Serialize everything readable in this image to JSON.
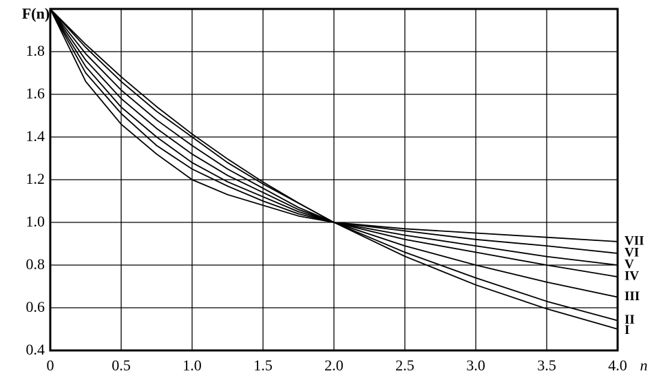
{
  "chart_data": {
    "type": "line",
    "x_label": "n",
    "y_label": "F(n)",
    "x": [
      0,
      0.25,
      0.5,
      0.75,
      1,
      1.25,
      1.5,
      1.75,
      2,
      2.5,
      3,
      3.5,
      4
    ],
    "series": [
      {
        "name": "I",
        "color": "#000000",
        "values": [
          2,
          1.834,
          1.682,
          1.542,
          1.414,
          1.297,
          1.189,
          1.091,
          1.0,
          0.841,
          0.707,
          0.595,
          0.5
        ]
      },
      {
        "name": "II",
        "color": "#000000",
        "values": [
          2,
          1.82,
          1.66,
          1.52,
          1.4,
          1.28,
          1.18,
          1.09,
          1.0,
          0.86,
          0.74,
          0.63,
          0.54
        ]
      },
      {
        "name": "III",
        "color": "#000000",
        "values": [
          2,
          1.79,
          1.62,
          1.48,
          1.36,
          1.25,
          1.16,
          1.07,
          1.0,
          0.89,
          0.8,
          0.72,
          0.65
        ]
      },
      {
        "name": "IV",
        "color": "#000000",
        "values": [
          2,
          1.76,
          1.58,
          1.44,
          1.32,
          1.22,
          1.14,
          1.06,
          1.0,
          0.92,
          0.86,
          0.8,
          0.745
        ]
      },
      {
        "name": "V",
        "color": "#000000",
        "values": [
          2,
          1.73,
          1.54,
          1.4,
          1.28,
          1.19,
          1.12,
          1.05,
          1.0,
          0.94,
          0.89,
          0.84,
          0.8
        ]
      },
      {
        "name": "VI",
        "color": "#000000",
        "values": [
          2,
          1.7,
          1.51,
          1.36,
          1.25,
          1.17,
          1.1,
          1.04,
          1.0,
          0.96,
          0.92,
          0.89,
          0.855
        ]
      },
      {
        "name": "VII",
        "color": "#000000",
        "values": [
          2,
          1.66,
          1.46,
          1.32,
          1.2,
          1.13,
          1.08,
          1.03,
          1.0,
          0.97,
          0.95,
          0.93,
          0.91
        ]
      }
    ],
    "xlim": [
      0,
      4
    ],
    "xticks": [
      0,
      0.5,
      {
        "value": 1,
        "label": "1.0"
      },
      1.5,
      {
        "value": 2,
        "label": "2.0"
      },
      2.5,
      {
        "value": 3,
        "label": "3.0"
      },
      3.5,
      {
        "value": 4,
        "label": "4.0"
      }
    ],
    "ylim": [
      0.4,
      2.0
    ],
    "yticks": [
      0.4,
      0.6,
      0.8,
      {
        "value": 1,
        "label": "1.0"
      },
      1.2,
      1.4,
      1.6,
      1.8
    ],
    "grid": true
  }
}
